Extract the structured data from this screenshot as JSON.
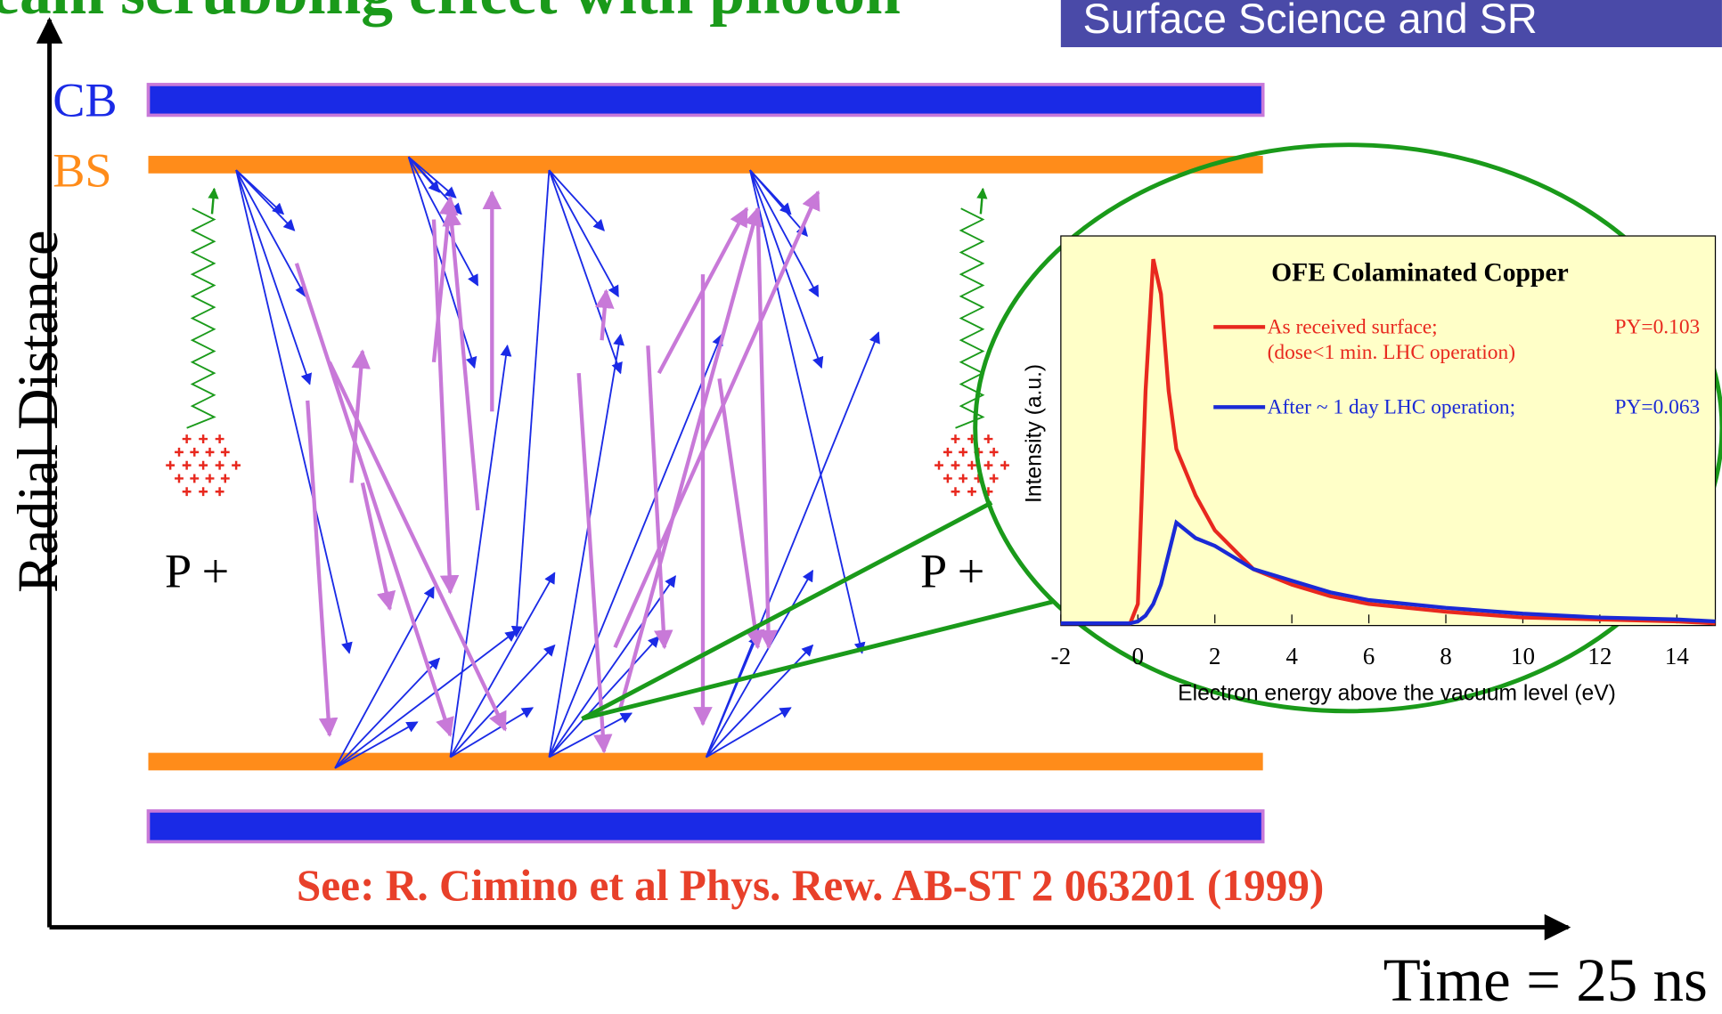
{
  "header": {
    "title": "eam scrubbing effect with photon",
    "banner": "Surface Science and SR"
  },
  "diagram": {
    "cb_label": "CB",
    "bs_label": "BS",
    "y_axis_label": "Radial Distance",
    "x_axis_label": "Time = 25 ns",
    "bunch_labels": [
      "P +",
      "P +"
    ],
    "reference": "See: R. Cimino et al Phys. Rew. AB-ST 2 063201 (1999)"
  },
  "chart_data": {
    "type": "line",
    "title": "OFE Colaminated Copper",
    "x_label": "Electron energy above the vacuum level (eV)",
    "y_label": "Intensity (a.u.)",
    "x": [
      -2,
      -0.2,
      0,
      0.2,
      0.4,
      0.6,
      0.8,
      1,
      1.5,
      2,
      3,
      4,
      5,
      6,
      8,
      10,
      12,
      14,
      15
    ],
    "series": [
      {
        "name": "As received surface;",
        "note_lines": [
          "PY=0.103",
          "(dose<1 min. LHC operation)"
        ],
        "color": "#e8281e",
        "values": [
          0,
          0,
          0.05,
          0.6,
          0.94,
          0.85,
          0.6,
          0.45,
          0.33,
          0.24,
          0.14,
          0.1,
          0.07,
          0.05,
          0.03,
          0.015,
          0.01,
          0.005,
          0
        ]
      },
      {
        "name": "After ~ 1 day  LHC operation;",
        "note_lines": [
          "PY=0.063"
        ],
        "color": "#1a2ad6",
        "values": [
          0,
          0,
          0.005,
          0.02,
          0.05,
          0.1,
          0.18,
          0.26,
          0.22,
          0.2,
          0.14,
          0.11,
          0.08,
          0.06,
          0.04,
          0.025,
          0.015,
          0.01,
          0.005
        ]
      }
    ],
    "xlim": [
      -2,
      15
    ],
    "ylim": [
      0,
      1
    ],
    "xticks": [
      -2,
      0,
      2,
      4,
      6,
      8,
      10,
      12,
      14
    ]
  }
}
